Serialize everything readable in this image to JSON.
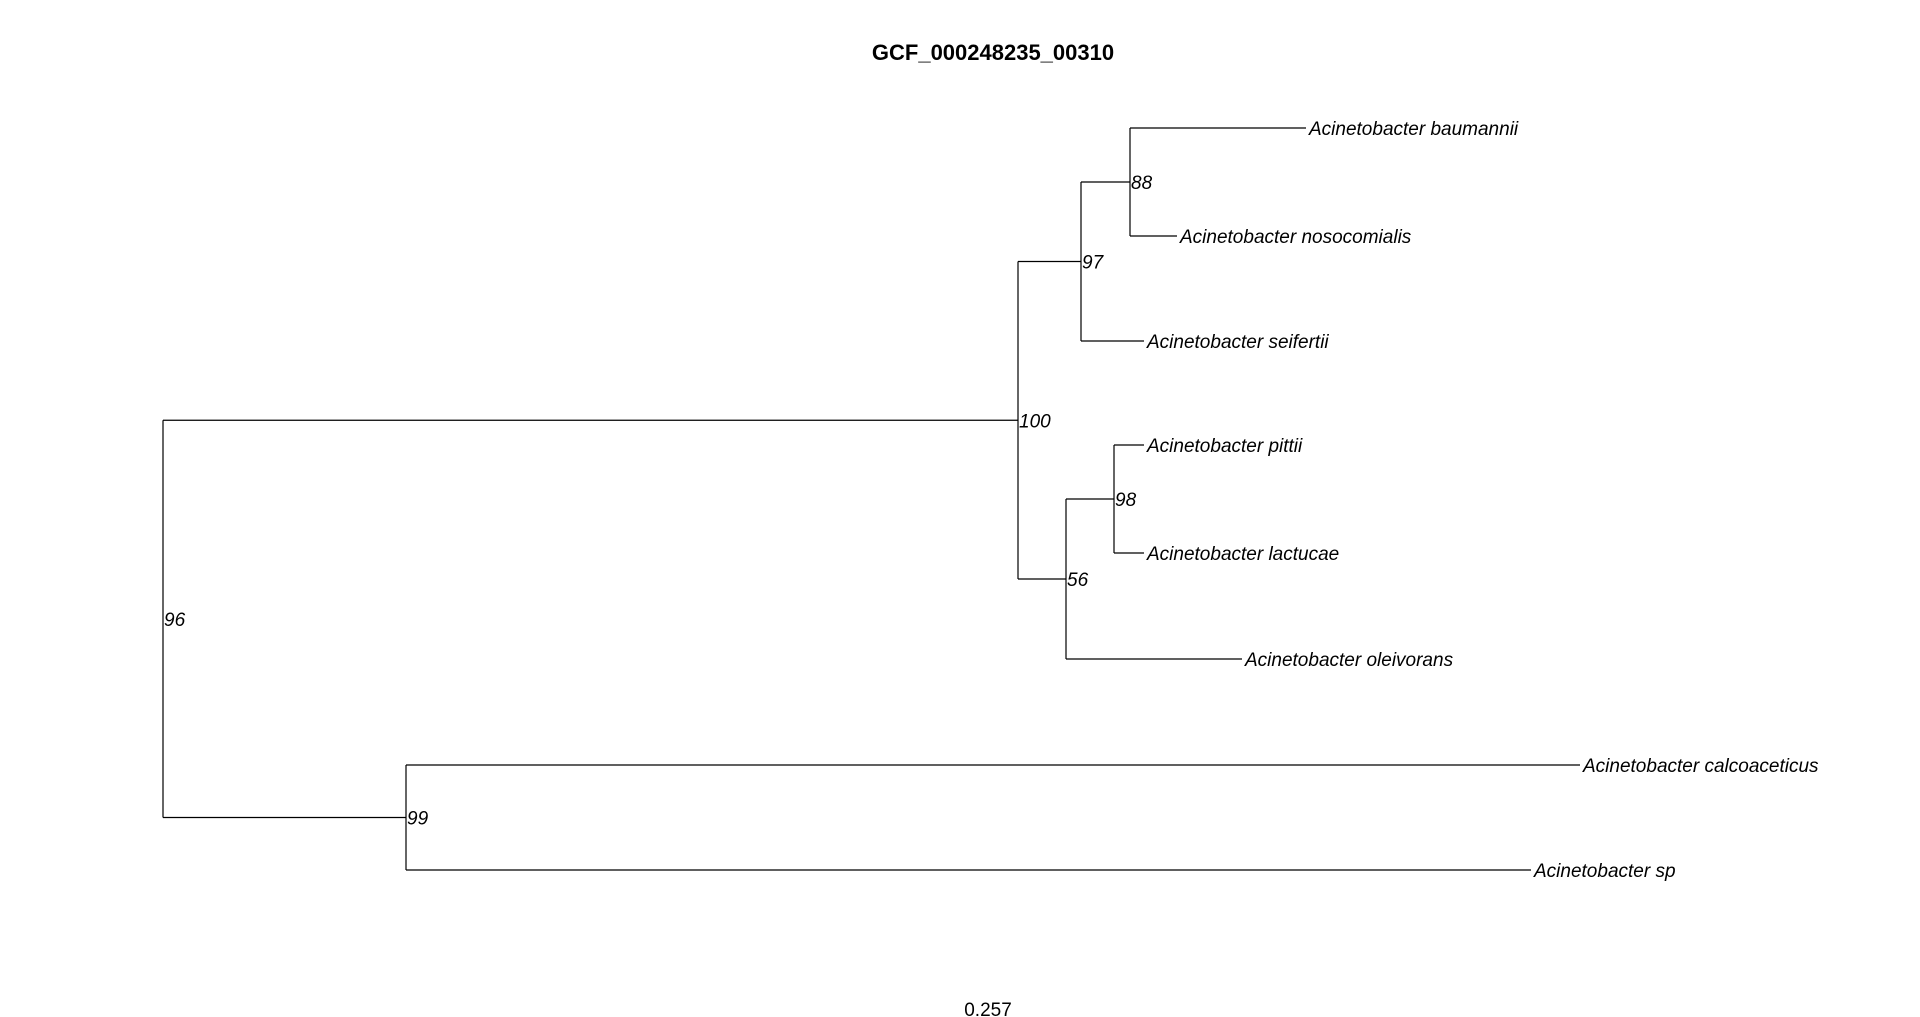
{
  "title": "GCF_000248235_00310",
  "scale_label": "0.257",
  "tree": {
    "support": "96",
    "children": [
      {
        "support": "100",
        "children": [
          {
            "support": "97",
            "children": [
              {
                "support": "88",
                "children": [
                  {
                    "name": "Acinetobacter baumannii"
                  },
                  {
                    "name": "Acinetobacter nosocomialis"
                  }
                ]
              },
              {
                "name": "Acinetobacter seifertii"
              }
            ]
          },
          {
            "support": "56",
            "children": [
              {
                "support": "98",
                "children": [
                  {
                    "name": "Acinetobacter pittii"
                  },
                  {
                    "name": "Acinetobacter lactucae"
                  }
                ]
              },
              {
                "name": "Acinetobacter oleivorans"
              }
            ]
          }
        ]
      },
      {
        "support": "99",
        "children": [
          {
            "name": "Acinetobacter calcoaceticus"
          },
          {
            "name": "Acinetobacter sp"
          }
        ]
      }
    ]
  }
}
